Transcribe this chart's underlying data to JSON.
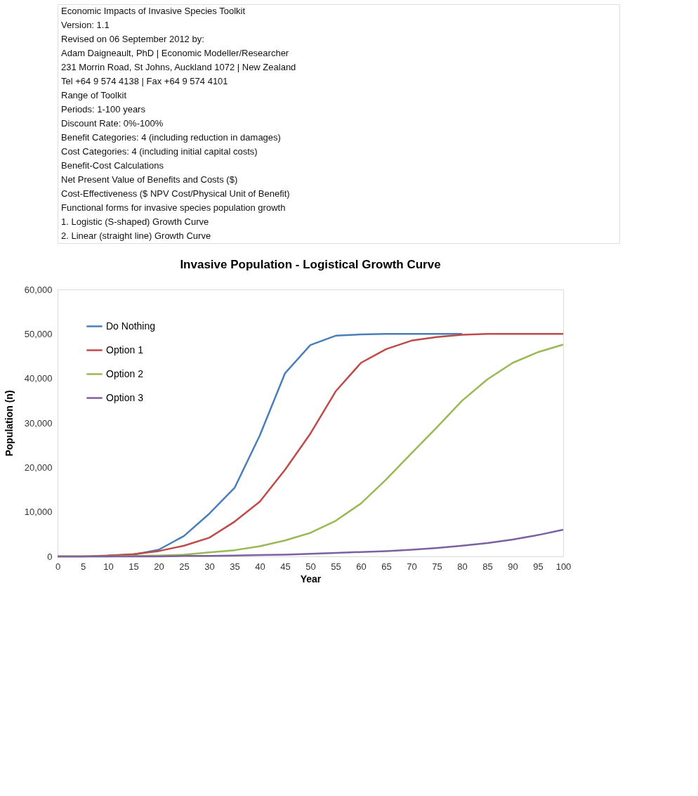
{
  "chart_data": {
    "type": "line",
    "title": "Invasive Population - Logistical Growth Curve",
    "xlabel": "Year",
    "ylabel": "Population (n)",
    "annotations": [
      "Economic Impacts of Invasive Species Toolkit",
      "Version:        1.1",
      "Revised on 06 September 2012 by:",
      "Adam Daigneault, PhD | Economic Modeller/Researcher",
      "231 Morrin Road, St Johns, Auckland 1072 | New Zealand",
      "Tel +64 9 574 4138 | Fax +64 9 574 4101",
      "Range of Toolkit",
      "Periods: 1-100 years",
      "Discount Rate: 0%-100%",
      "Benefit Categories: 4 (including reduction in damages)",
      "Cost Categories: 4 (including initial capital costs)",
      "Benefit-Cost Calculations",
      "Net Present Value of Benefits and Costs ($)",
      "Cost-Effectiveness ($ NPV Cost/Physical Unit of Benefit)",
      "Functional forms for invasive species population growth",
      "1. Logistic (S-shaped) Growth Curve",
      "2. Linear (straight line) Growth Curve"
    ],
    "x": [
      0,
      5,
      10,
      15,
      20,
      25,
      30,
      35,
      40,
      45,
      50,
      55,
      60,
      65,
      70,
      75,
      80,
      85,
      90,
      95,
      100
    ],
    "series": [
      {
        "name": "Do Nothing",
        "color": "#4a7ebb",
        "values": [
          null,
          null,
          200,
          400,
          1500,
          4600,
          9600,
          15400,
          27200,
          41200,
          47500,
          49600,
          49900,
          50000,
          50000,
          50000,
          50000,
          null,
          null,
          null,
          null
        ]
      },
      {
        "name": "Option 1",
        "color": "#be4b48",
        "values": [
          0,
          0,
          200,
          500,
          1200,
          2400,
          4200,
          7800,
          12300,
          19500,
          27600,
          37100,
          43500,
          46600,
          48500,
          49300,
          49800,
          50000,
          50000,
          50000,
          50000
        ]
      },
      {
        "name": "Option 2",
        "color": "#98b954",
        "values": [
          0,
          0,
          0,
          100,
          200,
          400,
          900,
          1400,
          2300,
          3600,
          5300,
          8000,
          11900,
          17300,
          23200,
          29000,
          35000,
          39800,
          43500,
          45900,
          47600
        ]
      },
      {
        "name": "Option 3",
        "color": "#7d60a0",
        "values": [
          0,
          0,
          0,
          0,
          0,
          100,
          100,
          200,
          300,
          400,
          600,
          800,
          1000,
          1200,
          1500,
          1900,
          2400,
          3000,
          3800,
          4800,
          6000
        ]
      }
    ],
    "xlim": [
      0,
      100
    ],
    "xticks": [
      0,
      5,
      10,
      15,
      20,
      25,
      30,
      35,
      40,
      45,
      50,
      55,
      60,
      65,
      70,
      75,
      80,
      85,
      90,
      95,
      100
    ],
    "ylim": [
      0,
      60000
    ],
    "yticks": [
      {
        "value": 0,
        "label": "0"
      },
      {
        "value": 10000,
        "label": "10,000"
      },
      {
        "value": 20000,
        "label": "20,000"
      },
      {
        "value": 30000,
        "label": "30,000"
      },
      {
        "value": 40000,
        "label": "40,000"
      },
      {
        "value": 50000,
        "label": "50,000"
      },
      {
        "value": 60000,
        "label": "60,000"
      }
    ],
    "grid": false,
    "legend": "top left",
    "marker": "none",
    "line_style": "solid"
  }
}
